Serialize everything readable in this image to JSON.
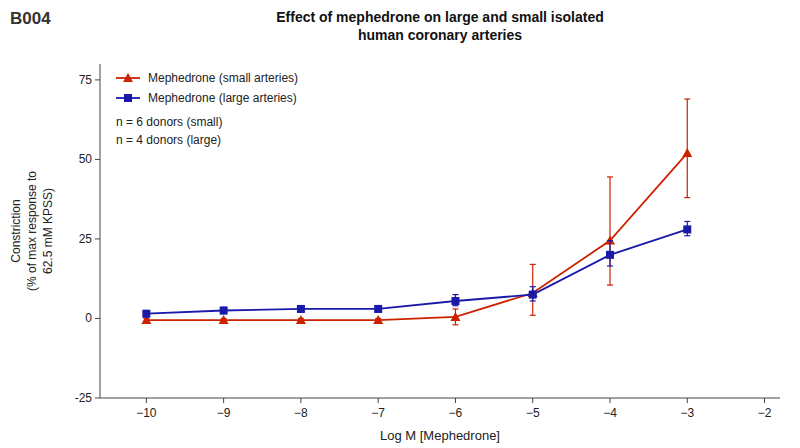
{
  "chart_data": {
    "type": "line",
    "title": "Effect of mephedrone on large and small isolated\nhuman coronary arteries",
    "xlabel": "Log M [Mephedrone]",
    "ylabel": "Constriction\n(% of max response to\n62.5 mM KPSS)",
    "annotations": [
      "B004",
      "n = 6 donors (small)",
      "n = 4 donors (large)"
    ],
    "xlim": [
      -10.6,
      -1.8
    ],
    "ylim": [
      -25,
      80
    ],
    "xticks": [
      {
        "value": -10,
        "label": "−10"
      },
      {
        "value": -9,
        "label": "−9"
      },
      {
        "value": -8,
        "label": "−8"
      },
      {
        "value": -7,
        "label": "−7"
      },
      {
        "value": -6,
        "label": "−6"
      },
      {
        "value": -5,
        "label": "−5"
      },
      {
        "value": -4,
        "label": "−4"
      },
      {
        "value": -3,
        "label": "−3"
      },
      {
        "value": -2,
        "label": "−2"
      }
    ],
    "yticks": [
      -25,
      0,
      25,
      50,
      75
    ],
    "x": [
      -10,
      -9,
      -8,
      -7,
      -6,
      -5,
      -4,
      -3
    ],
    "series": [
      {
        "name": "Mephedrone (small arteries)",
        "color": "#cc2200",
        "marker": "triangle",
        "line_style": "solid",
        "values": [
          -0.5,
          -0.5,
          -0.5,
          -0.5,
          0.5,
          8.0,
          24.5,
          52.0
        ],
        "error_lo": [
          0.5,
          0.5,
          0.5,
          0.5,
          2.5,
          7.0,
          14.0,
          14.0
        ],
        "error_hi": [
          0.5,
          0.5,
          0.5,
          0.5,
          2.5,
          9.0,
          20.0,
          17.0
        ]
      },
      {
        "name": "Mephedrone (large arteries)",
        "color": "#1a1aaa",
        "marker": "square",
        "line_style": "solid",
        "values": [
          1.5,
          2.5,
          3.0,
          3.0,
          5.5,
          7.5,
          20.0,
          28.0
        ],
        "error_lo": [
          1.0,
          1.0,
          1.0,
          1.0,
          1.5,
          2.0,
          3.5,
          2.0
        ],
        "error_hi": [
          1.0,
          1.0,
          1.0,
          1.0,
          2.0,
          2.5,
          4.5,
          2.5
        ]
      }
    ],
    "legend": "upper left",
    "grid": false
  }
}
